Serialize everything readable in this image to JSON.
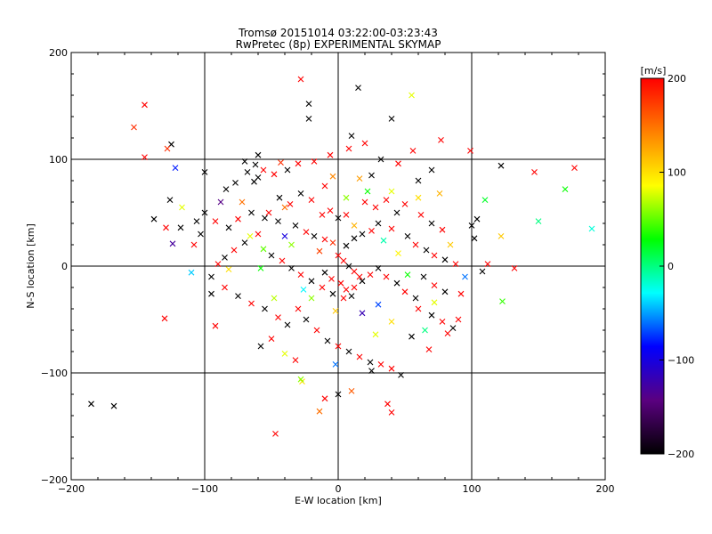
{
  "chart_data": {
    "type": "scatter",
    "title": "Tromsø 20151014 03:22:00-03:23:43",
    "subtitle": "RwPretec (8p) EXPERIMENTAL SKYMAP",
    "xlabel": "E-W location [km]",
    "ylabel": "N-S location [km]",
    "xlim": [
      -200,
      200
    ],
    "ylim": [
      -200,
      200
    ],
    "x_ticks": [
      -200,
      -100,
      0,
      100,
      200
    ],
    "y_ticks": [
      -200,
      -100,
      0,
      100,
      200
    ],
    "x_tick_labels": [
      "−200",
      "−100",
      "0",
      "100",
      "200"
    ],
    "y_tick_labels": [
      "−200",
      "−100",
      "0",
      "100",
      "200"
    ],
    "grid_lines": [
      -100,
      0,
      100
    ],
    "colorbar": {
      "label": "[m/s]",
      "range": [
        -200,
        200
      ],
      "ticks": [
        200,
        100,
        0,
        -100,
        -200
      ],
      "tick_labels": [
        "200",
        "100",
        "0",
        "−100",
        "−200"
      ],
      "colors": [
        "#000000",
        "#5a0080",
        "#0000ff",
        "#00ffff",
        "#00ff00",
        "#ffff00",
        "#ff8000",
        "#ff0000"
      ]
    },
    "points": [
      [
        -28,
        175,
        200
      ],
      [
        15,
        167,
        -200
      ],
      [
        -22,
        152,
        -200
      ],
      [
        55,
        160,
        80
      ],
      [
        -145,
        151,
        200
      ],
      [
        -153,
        130,
        180
      ],
      [
        -125,
        114,
        -200
      ],
      [
        -145,
        102,
        200
      ],
      [
        -128,
        110,
        180
      ],
      [
        -60,
        104,
        -200
      ],
      [
        -22,
        138,
        -200
      ],
      [
        40,
        138,
        -200
      ],
      [
        10,
        122,
        -200
      ],
      [
        77,
        118,
        200
      ],
      [
        99,
        108,
        200
      ],
      [
        122,
        94,
        -200
      ],
      [
        147,
        88,
        200
      ],
      [
        177,
        92,
        200
      ],
      [
        -43,
        97,
        180
      ],
      [
        -100,
        88,
        -200
      ],
      [
        -118,
        36,
        -200
      ],
      [
        -117,
        55,
        80
      ],
      [
        -124,
        21,
        -130
      ],
      [
        -126,
        62,
        -200
      ],
      [
        -129,
        36,
        200
      ],
      [
        -103,
        30,
        -200
      ],
      [
        -106,
        42,
        -200
      ],
      [
        -95,
        -26,
        -200
      ],
      [
        -92,
        -56,
        200
      ],
      [
        -130,
        -49,
        200
      ],
      [
        -185,
        -129,
        -200
      ],
      [
        -168,
        -131,
        -200
      ],
      [
        -47,
        -157,
        200
      ],
      [
        -27,
        -108,
        100
      ],
      [
        -28,
        -106,
        60
      ],
      [
        -14,
        -136,
        150
      ],
      [
        -10,
        -124,
        200
      ],
      [
        0,
        -120,
        -200
      ],
      [
        10,
        -117,
        160
      ],
      [
        37,
        -129,
        200
      ],
      [
        40,
        -137,
        200
      ],
      [
        25,
        -98,
        -200
      ],
      [
        47,
        -102,
        -200
      ],
      [
        55,
        -66,
        -200
      ],
      [
        68,
        -78,
        200
      ],
      [
        82,
        -63,
        200
      ],
      [
        90,
        -50,
        200
      ],
      [
        92,
        -26,
        200
      ],
      [
        108,
        -5,
        -200
      ],
      [
        123,
        -33,
        40
      ],
      [
        132,
        -2,
        200
      ],
      [
        112,
        2,
        200
      ],
      [
        100,
        38,
        -200
      ],
      [
        104,
        44,
        -200
      ],
      [
        102,
        26,
        -200
      ],
      [
        60,
        80,
        -200
      ],
      [
        70,
        90,
        -200
      ],
      [
        40,
        70,
        80
      ],
      [
        25,
        85,
        -200
      ],
      [
        -10,
        75,
        200
      ],
      [
        -60,
        83,
        -200
      ],
      [
        -68,
        88,
        -200
      ],
      [
        -63,
        79,
        -200
      ],
      [
        -77,
        78,
        -200
      ],
      [
        -84,
        72,
        -200
      ],
      [
        -40,
        55,
        150
      ],
      [
        -55,
        45,
        -200
      ],
      [
        -45,
        42,
        -200
      ],
      [
        -32,
        38,
        -200
      ],
      [
        -24,
        32,
        200
      ],
      [
        -18,
        28,
        -200
      ],
      [
        -10,
        25,
        200
      ],
      [
        -4,
        22,
        180
      ],
      [
        6,
        19,
        -200
      ],
      [
        12,
        26,
        -200
      ],
      [
        18,
        30,
        -200
      ],
      [
        25,
        33,
        200
      ],
      [
        30,
        40,
        -200
      ],
      [
        40,
        35,
        200
      ],
      [
        52,
        28,
        -200
      ],
      [
        58,
        20,
        200
      ],
      [
        66,
        15,
        -200
      ],
      [
        72,
        10,
        200
      ],
      [
        80,
        6,
        -200
      ],
      [
        88,
        2,
        200
      ],
      [
        -60,
        30,
        200
      ],
      [
        -70,
        22,
        -200
      ],
      [
        -78,
        15,
        200
      ],
      [
        -85,
        8,
        -200
      ],
      [
        -90,
        2,
        200
      ],
      [
        -50,
        10,
        -200
      ],
      [
        -42,
        5,
        200
      ],
      [
        -35,
        -2,
        -200
      ],
      [
        -28,
        -8,
        200
      ],
      [
        -20,
        -14,
        -200
      ],
      [
        -12,
        -20,
        200
      ],
      [
        -4,
        -26,
        -200
      ],
      [
        4,
        -30,
        200
      ],
      [
        12,
        -20,
        200
      ],
      [
        18,
        -14,
        -200
      ],
      [
        24,
        -8,
        200
      ],
      [
        30,
        -2,
        -200
      ],
      [
        36,
        -10,
        200
      ],
      [
        44,
        -16,
        -200
      ],
      [
        50,
        -24,
        200
      ],
      [
        58,
        -30,
        -200
      ],
      [
        -30,
        -40,
        200
      ],
      [
        -24,
        -50,
        -200
      ],
      [
        -16,
        -60,
        200
      ],
      [
        -8,
        -70,
        -200
      ],
      [
        0,
        -75,
        200
      ],
      [
        8,
        -80,
        -200
      ],
      [
        16,
        -85,
        200
      ],
      [
        24,
        -90,
        -200
      ],
      [
        32,
        -92,
        200
      ],
      [
        40,
        -96,
        200
      ],
      [
        0,
        10,
        200
      ],
      [
        4,
        5,
        200
      ],
      [
        8,
        0,
        -200
      ],
      [
        12,
        -5,
        200
      ],
      [
        16,
        -10,
        200
      ],
      [
        -5,
        -12,
        200
      ],
      [
        -10,
        -6,
        -200
      ],
      [
        2,
        -16,
        200
      ],
      [
        6,
        -22,
        200
      ],
      [
        10,
        -28,
        -200
      ],
      [
        20,
        60,
        200
      ],
      [
        28,
        55,
        200
      ],
      [
        36,
        62,
        200
      ],
      [
        44,
        50,
        -200
      ],
      [
        50,
        58,
        200
      ],
      [
        62,
        48,
        200
      ],
      [
        70,
        40,
        -200
      ],
      [
        78,
        34,
        200
      ],
      [
        -20,
        62,
        200
      ],
      [
        -28,
        68,
        -200
      ],
      [
        -36,
        58,
        200
      ],
      [
        -44,
        64,
        -200
      ],
      [
        -52,
        50,
        200
      ],
      [
        -12,
        48,
        200
      ],
      [
        -6,
        52,
        200
      ],
      [
        0,
        45,
        -200
      ],
      [
        6,
        48,
        200
      ],
      [
        -65,
        50,
        -200
      ],
      [
        -75,
        44,
        200
      ],
      [
        -82,
        36,
        -200
      ],
      [
        -92,
        42,
        200
      ],
      [
        -100,
        50,
        -200
      ],
      [
        -108,
        20,
        200
      ],
      [
        -95,
        -10,
        -200
      ],
      [
        -85,
        -20,
        200
      ],
      [
        -75,
        -28,
        -200
      ],
      [
        -65,
        -35,
        200
      ],
      [
        -55,
        -40,
        -200
      ],
      [
        -45,
        -48,
        200
      ],
      [
        -38,
        -55,
        -200
      ],
      [
        -50,
        -68,
        200
      ],
      [
        -58,
        -75,
        -200
      ],
      [
        -40,
        -82,
        80
      ],
      [
        -32,
        -88,
        200
      ],
      [
        60,
        -40,
        200
      ],
      [
        70,
        -46,
        -200
      ],
      [
        78,
        -52,
        200
      ],
      [
        86,
        -58,
        -200
      ],
      [
        64,
        -10,
        -200
      ],
      [
        72,
        -18,
        200
      ],
      [
        80,
        -24,
        -200
      ],
      [
        -62,
        95,
        -200
      ],
      [
        -56,
        90,
        200
      ],
      [
        -70,
        98,
        -200
      ],
      [
        -48,
        86,
        200
      ],
      [
        -38,
        90,
        -200
      ],
      [
        -30,
        96,
        200
      ],
      [
        -18,
        98,
        200
      ],
      [
        -6,
        104,
        200
      ],
      [
        8,
        110,
        200
      ],
      [
        20,
        115,
        200
      ],
      [
        32,
        100,
        -200
      ],
      [
        45,
        96,
        200
      ],
      [
        56,
        108,
        200
      ],
      [
        -58,
        -2,
        30
      ],
      [
        -66,
        28,
        80
      ],
      [
        -72,
        60,
        150
      ],
      [
        -35,
        20,
        60
      ],
      [
        22,
        70,
        30
      ],
      [
        30,
        -36,
        -70
      ],
      [
        -2,
        -42,
        110
      ],
      [
        45,
        12,
        90
      ],
      [
        52,
        -8,
        30
      ],
      [
        -82,
        -3,
        100
      ],
      [
        -20,
        -30,
        60
      ],
      [
        12,
        38,
        120
      ],
      [
        -14,
        14,
        170
      ],
      [
        40,
        -52,
        100
      ],
      [
        84,
        20,
        110
      ],
      [
        60,
        64,
        100
      ],
      [
        -40,
        28,
        -100
      ],
      [
        18,
        -44,
        -120
      ],
      [
        65,
        -60,
        0
      ],
      [
        95,
        -10,
        -60
      ],
      [
        -88,
        60,
        -140
      ],
      [
        16,
        82,
        130
      ],
      [
        28,
        -64,
        80
      ],
      [
        -56,
        16,
        50
      ],
      [
        -110,
        -6,
        -40
      ],
      [
        110,
        62,
        20
      ],
      [
        76,
        68,
        120
      ],
      [
        -26,
        -22,
        -30
      ],
      [
        6,
        64,
        60
      ],
      [
        -2,
        -92,
        -60
      ],
      [
        -48,
        -30,
        70
      ],
      [
        34,
        24,
        -10
      ],
      [
        -4,
        84,
        140
      ],
      [
        72,
        -34,
        80
      ],
      [
        150,
        42,
        0
      ],
      [
        190,
        35,
        -20
      ],
      [
        170,
        72,
        30
      ],
      [
        -122,
        92,
        -80
      ],
      [
        122,
        28,
        110
      ],
      [
        -138,
        44,
        -200
      ]
    ]
  }
}
